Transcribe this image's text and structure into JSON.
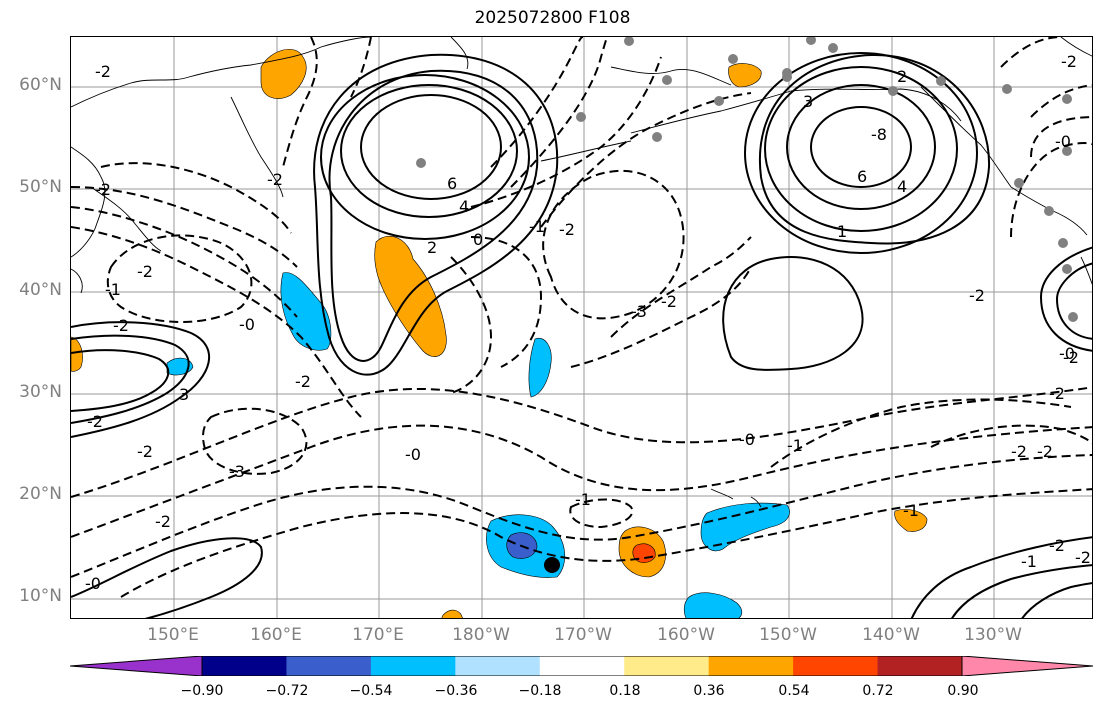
{
  "title": "2025072800 F108",
  "axes": {
    "lat_labels": [
      "10°N",
      "20°N",
      "30°N",
      "40°N",
      "50°N",
      "60°N"
    ],
    "lon_labels": [
      "150°E",
      "160°E",
      "170°E",
      "180°W",
      "170°W",
      "160°W",
      "150°W",
      "140°W",
      "130°W"
    ]
  },
  "contour_labels": [
    "2",
    "1",
    "0",
    "-2",
    "3",
    "-8",
    "6",
    "4",
    "2",
    "0",
    "-2",
    "-3",
    "-2",
    "-1",
    "-2",
    "-2",
    "-3",
    "-2",
    "-0",
    "-2",
    "-2",
    "-0",
    "-1",
    "-2",
    "-3",
    "-2",
    "-1",
    "-2",
    "-2",
    "-0",
    "-1",
    "-0",
    "-1",
    "-2",
    "-2",
    "-2",
    "-2",
    "-2",
    "-2",
    "-0",
    "-1",
    "-2",
    "-2",
    "-8",
    "6",
    "4",
    "1",
    "2",
    "3",
    "-0",
    "-2"
  ],
  "colorbar": {
    "tick_labels": [
      "−0.90",
      "−0.72",
      "−0.54",
      "−0.36",
      "−0.18",
      "0.18",
      "0.36",
      "0.54",
      "0.72",
      "0.90"
    ],
    "colors": [
      "#9932cc",
      "#00008b",
      "#3a5fcd",
      "#00bfff",
      "#b0e2ff",
      "#ffffff",
      "#ffeb8a",
      "#ffa500",
      "#ff4500",
      "#b22222",
      "#ff88aa"
    ]
  },
  "fill_colors": {
    "strong_negative": "#3a5fcd",
    "negative": "#00bfff",
    "positive": "#ffa500",
    "strong_positive": "#ff4500"
  },
  "stations": "gray dots",
  "marker": "black dot"
}
